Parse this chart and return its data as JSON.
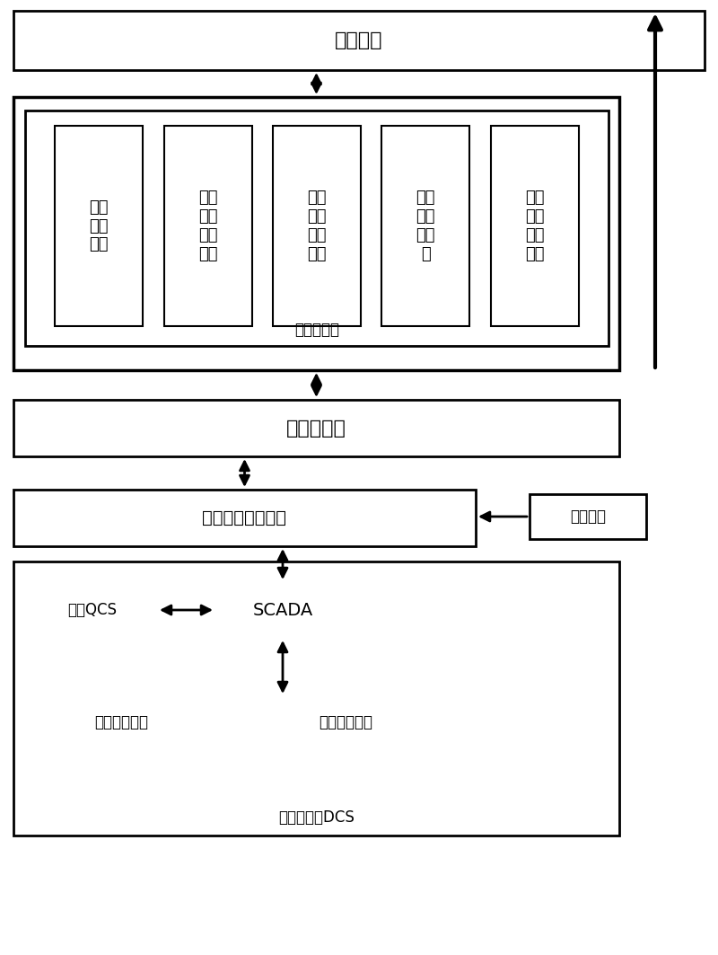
{
  "title": "用户界面",
  "outer_box1_label": "控制模型库",
  "inner_boxes": [
    "能耗\n目标\n模型",
    "蒸汽\n冷凝\n系统\n模型",
    "气罩\n通风\n系统\n模型",
    "热回\n收系\n统模\n型",
    "能量\n系统\n融合\n模型"
  ],
  "db_label": "关系数据库",
  "scada_software_label": "工业组态软件模块",
  "manual_input_label": "人工输入",
  "qcs_label": "纸机QCS",
  "scada_label": "SCADA",
  "sensor1_label": "原有传感器群",
  "sensor2_label": "新增传感器群",
  "bottom_label": "纸机干燥部DCS",
  "bg_color": "#ffffff",
  "box_color": "#ffffff",
  "border_color": "#000000",
  "text_color": "#000000",
  "fontsize_large": 16,
  "fontsize_medium": 14,
  "fontsize_small": 12
}
